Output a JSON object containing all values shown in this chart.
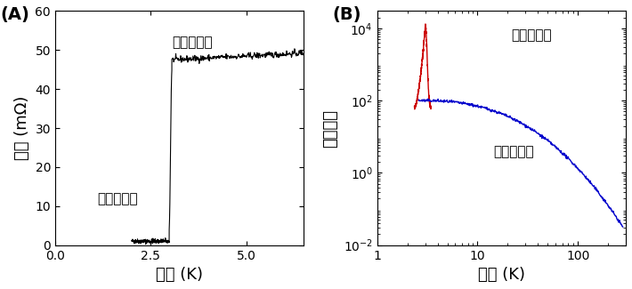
{
  "panel_A": {
    "label": "(A)",
    "xlabel": "温度 (K)",
    "ylabel": "抵抗 (mΩ)",
    "xlim": [
      0,
      6.5
    ],
    "ylim": [
      0,
      60
    ],
    "xticks": [
      0,
      2.5,
      5.0
    ],
    "yticks": [
      0,
      10,
      20,
      30,
      40,
      50,
      60
    ],
    "transition_T": 3.0,
    "low_R": 1.0,
    "high_R": 47.5,
    "slope_high": 0.5,
    "annotation_super": "超伝導状態",
    "annotation_normal": "常伝導状態",
    "color": "#000000"
  },
  "panel_B": {
    "label": "(B)",
    "xlabel": "温度 (K)",
    "ylabel": "整流効果",
    "xlim_log": [
      1,
      300
    ],
    "ylim_log": [
      0.01,
      30000
    ],
    "annotation_super": "超伝導状態",
    "annotation_normal": "常伝導状態",
    "color_red": "#cc0000",
    "color_blue": "#0000cc"
  },
  "background_color": "#ffffff",
  "label_fontsize": 13,
  "tick_fontsize": 10,
  "annot_fontsize": 11
}
